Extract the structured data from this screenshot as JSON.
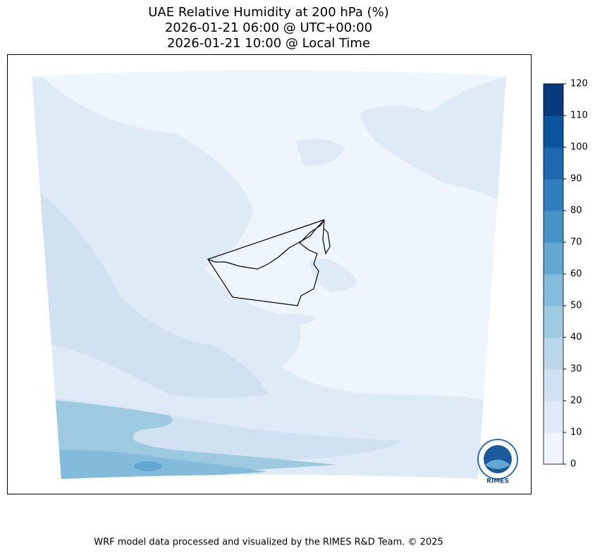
{
  "title": [
    "UAE Relative Humidity at 200 hPa (%)",
    "2026-01-21 06:00 @ UTC+00:00",
    "2026-01-21 10:00 @ Local Time"
  ],
  "colorbar": {
    "ticks": [
      0,
      10,
      20,
      30,
      40,
      50,
      60,
      70,
      80,
      90,
      100,
      110,
      120
    ],
    "colors": [
      "#eff5fc",
      "#deebf7",
      "#d0e1f2",
      "#b9d6ea",
      "#9ecae1",
      "#82bbdb",
      "#62a8d3",
      "#4594c7",
      "#2f7fbc",
      "#1c69b0",
      "#0b559f",
      "#08397a"
    ]
  },
  "logo": "RIMES",
  "footer": "WRF model data processed and visualized by the RIMES R&D Team. © 2025"
}
